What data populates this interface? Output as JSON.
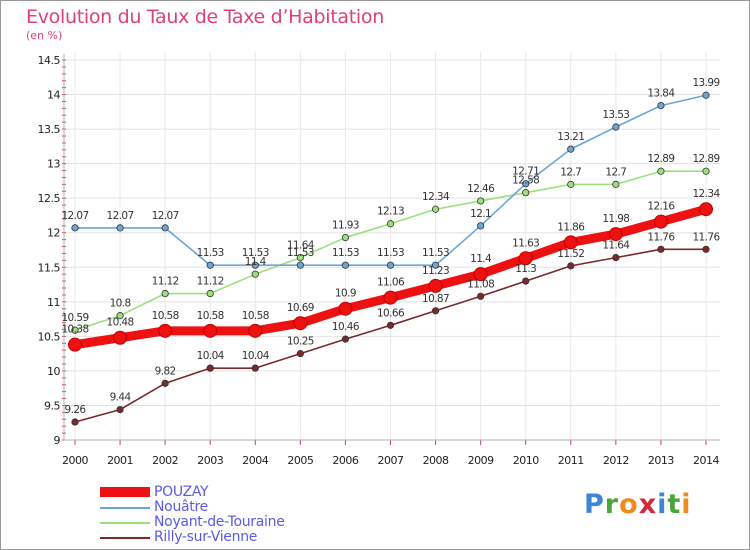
{
  "header": {
    "title": "Evolution du Taux de Taxe d’Habitation",
    "subtitle": "(en %)"
  },
  "logo": {
    "letters": [
      "P",
      "r",
      "o",
      "x",
      "i",
      "t",
      "i"
    ],
    "colors": [
      "#3b86d8",
      "#4aa63a",
      "#f08a1c",
      "#d6283a",
      "#3b86d8",
      "#4aa63a",
      "#f08a1c"
    ]
  },
  "chart_data": {
    "type": "line",
    "title": "Evolution du Taux de Taxe d’Habitation",
    "ylabel": "(en %)",
    "xlabel": "",
    "x": [
      "2000",
      "2001",
      "2002",
      "2003",
      "2004",
      "2005",
      "2006",
      "2007",
      "2008",
      "2009",
      "2010",
      "2011",
      "2012",
      "2013",
      "2014"
    ],
    "ylim": [
      9,
      14.5
    ],
    "yticks": [
      "9",
      "9.5",
      "10",
      "10.5",
      "11",
      "11.5",
      "12",
      "12.5",
      "13",
      "13.5",
      "14",
      "14.5"
    ],
    "legend_position": "bottom-left",
    "series": [
      {
        "name": "POUZAY",
        "color": "#ee1111",
        "values": [
          10.38,
          10.48,
          10.58,
          10.58,
          10.58,
          10.69,
          10.9,
          11.06,
          11.23,
          11.4,
          11.63,
          11.86,
          11.98,
          12.16,
          12.34
        ],
        "labels": [
          "10.38",
          "10.48",
          "10.58",
          "10.58",
          "10.58",
          "10.69",
          "10.9",
          "11.06",
          "11.23",
          "11.4",
          "11.63",
          "11.86",
          "11.98",
          "12.16",
          "12.34"
        ]
      },
      {
        "name": "Nouâtre",
        "color": "#6aa6d6",
        "values": [
          12.07,
          12.07,
          12.07,
          11.53,
          11.53,
          11.53,
          11.53,
          11.53,
          11.53,
          12.1,
          12.71,
          13.21,
          13.53,
          13.84,
          13.99
        ],
        "labels": [
          "12.07",
          "12.07",
          "12.07",
          "11.53",
          "11.53",
          "11.53",
          "11.53",
          "11.53",
          "11.53",
          "12.1",
          "12.71",
          "13.21",
          "13.53",
          "13.84",
          "13.99"
        ]
      },
      {
        "name": "Noyant-de-Touraine",
        "color": "#9be07a",
        "values": [
          10.59,
          10.8,
          11.12,
          11.12,
          11.4,
          11.64,
          11.93,
          12.13,
          12.34,
          12.46,
          12.58,
          12.7,
          12.7,
          12.89,
          12.89
        ],
        "labels": [
          "10.59",
          "10.8",
          "11.12",
          "11.12",
          "11.4",
          "11.64",
          "11.93",
          "12.13",
          "12.34",
          "12.46",
          "12.58",
          "12.7",
          "12.7",
          "12.89",
          "12.89"
        ]
      },
      {
        "name": "Rilly-sur-Vienne",
        "color": "#7a2a2a",
        "values": [
          9.26,
          9.44,
          9.82,
          10.04,
          10.04,
          10.25,
          10.46,
          10.66,
          10.87,
          11.08,
          11.3,
          11.52,
          11.64,
          11.76,
          11.76
        ],
        "labels": [
          "9.26",
          "9.44",
          "9.82",
          "10.04",
          "10.04",
          "10.25",
          "10.46",
          "10.66",
          "10.87",
          "11.08",
          "11.3",
          "11.52",
          "11.64",
          "11.76",
          "11.76"
        ]
      }
    ]
  }
}
